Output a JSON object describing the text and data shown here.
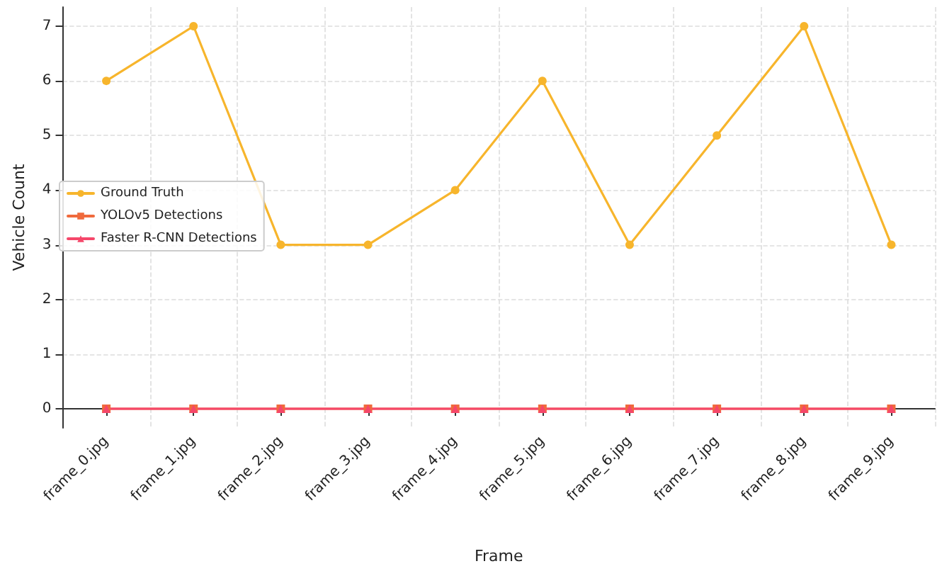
{
  "chart_data": {
    "type": "line",
    "xlabel": "Frame",
    "ylabel": "Vehicle Count",
    "categories": [
      "frame_0.jpg",
      "frame_1.jpg",
      "frame_2.jpg",
      "frame_3.jpg",
      "frame_4.jpg",
      "frame_5.jpg",
      "frame_6.jpg",
      "frame_7.jpg",
      "frame_8.jpg",
      "frame_9.jpg"
    ],
    "series": [
      {
        "name": "Ground Truth",
        "color": "#f7b52c",
        "marker": "circle",
        "values": [
          6,
          7,
          3,
          3,
          4,
          6,
          3,
          5,
          7,
          3
        ]
      },
      {
        "name": "YOLOv5 Detections",
        "color": "#f06a3c",
        "marker": "square",
        "values": [
          0,
          0,
          0,
          0,
          0,
          0,
          0,
          0,
          0,
          0
        ]
      },
      {
        "name": "Faster R-CNN Detections",
        "color": "#f5476a",
        "marker": "triangle",
        "values": [
          0,
          0,
          0,
          0,
          0,
          0,
          0,
          0,
          0,
          0
        ]
      }
    ],
    "ylim": [
      -0.35,
      7.35
    ],
    "yticks": [
      0,
      1,
      2,
      3,
      4,
      5,
      6,
      7
    ],
    "grid": true,
    "legend": "left"
  }
}
